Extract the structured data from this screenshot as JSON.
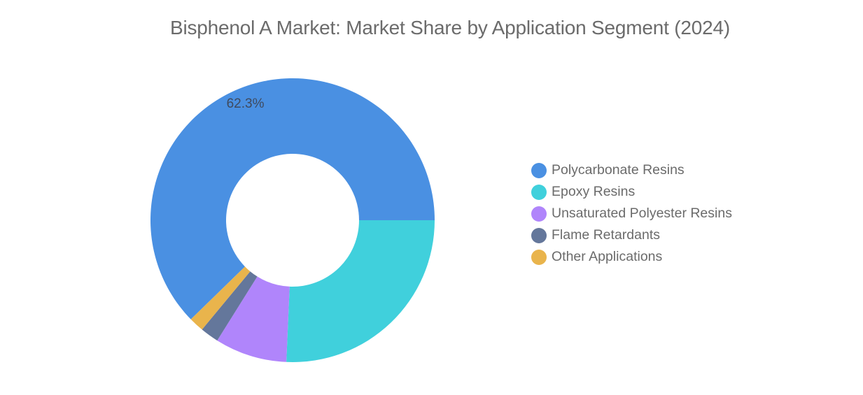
{
  "chart_data": {
    "type": "pie",
    "title": "Bisphenol A Market: Market Share by Application Segment (2024)",
    "categories": [
      "Polycarbonate Resins",
      "Epoxy Resins",
      "Unsaturated Polyester Resins",
      "Flame Retardants",
      "Other Applications"
    ],
    "values": [
      62.3,
      25.7,
      8.2,
      2.1,
      1.7
    ],
    "data_labels": [
      "62.3%",
      "",
      "",
      "",
      ""
    ],
    "colors": [
      "#4a90e2",
      "#40d0dc",
      "#b085fb",
      "#64779b",
      "#e9b44c"
    ],
    "donut": true,
    "legend_position": "right"
  }
}
